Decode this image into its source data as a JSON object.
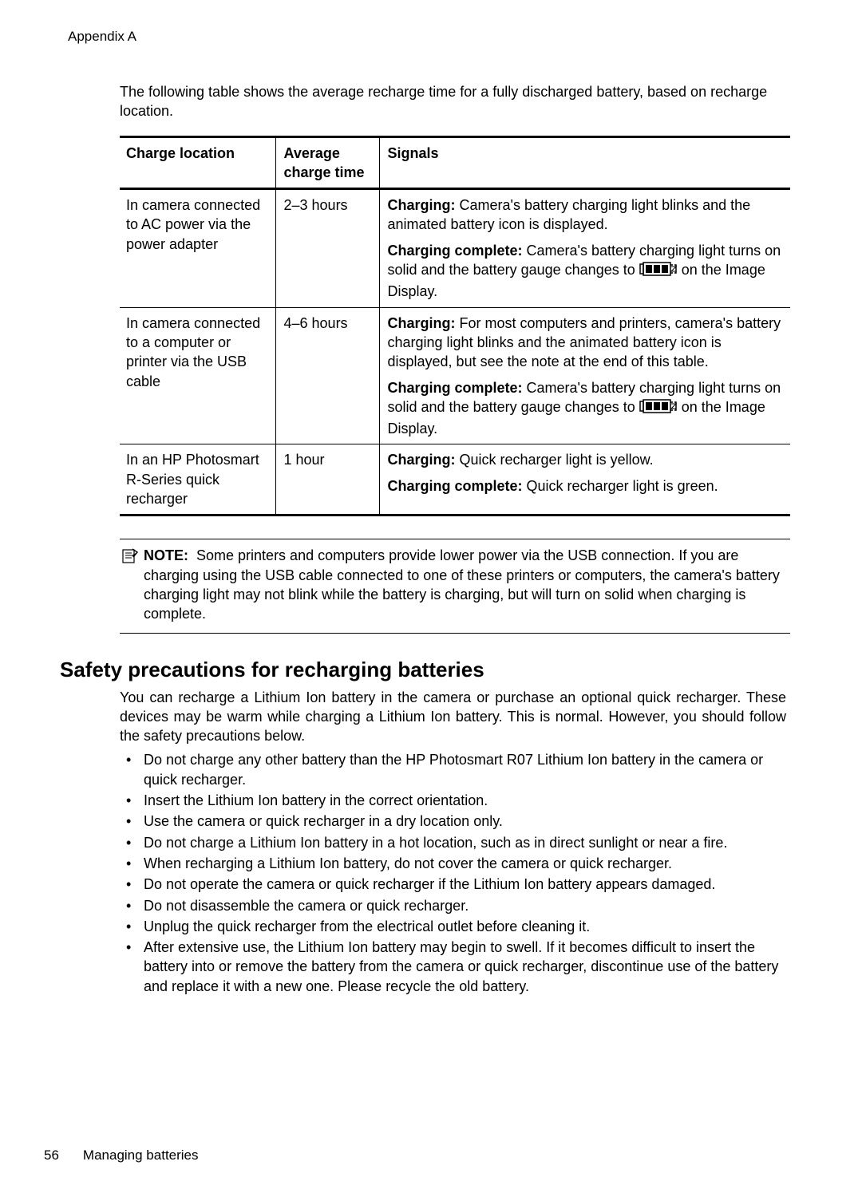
{
  "appendix": "Appendix A",
  "intro": "The following table shows the average recharge time for a fully discharged battery, based on recharge location.",
  "table": {
    "headers": {
      "location": "Charge location",
      "time": "Average charge time",
      "signals": "Signals"
    },
    "strong": {
      "charging": "Charging:",
      "complete": "Charging complete:"
    },
    "icon_suffix": "on the Image Display.",
    "rows": [
      {
        "location": "In camera connected to AC power via the power adapter",
        "time": "2–3 hours",
        "charging": "Camera's battery charging light blinks and the animated battery icon is displayed.",
        "complete_pre": "Camera's battery charging light turns on solid and the battery gauge changes to",
        "has_icon": true
      },
      {
        "location": "In camera connected to a computer or printer via the USB cable",
        "time": "4–6 hours",
        "charging": "For most computers and printers, camera's battery charging light blinks and the animated battery icon is displayed, but see the note at the end of this table.",
        "complete_pre": "Camera's battery charging light turns on solid and the battery gauge changes to",
        "has_icon": true
      },
      {
        "location": "In an HP Photosmart R-Series quick recharger",
        "time": "1 hour",
        "charging": "Quick recharger light is yellow.",
        "complete_pre": "Quick recharger light is green.",
        "has_icon": false
      }
    ]
  },
  "note": {
    "label": "NOTE:",
    "body": "Some printers and computers provide lower power via the USB connection. If you are charging using the USB cable connected to one of these printers or computers, the camera's battery charging light may not blink while the battery is charging, but will turn on solid when charging is complete."
  },
  "safety": {
    "heading": "Safety precautions for recharging batteries",
    "intro": "You can recharge a Lithium Ion battery in the camera or purchase an optional quick recharger. These devices may be warm while charging a Lithium Ion battery. This is normal. However, you should follow the safety precautions below.",
    "items": [
      "Do not charge any other battery than the HP Photosmart R07 Lithium Ion battery in the camera or quick recharger.",
      "Insert the Lithium Ion battery in the correct orientation.",
      "Use the camera or quick recharger in a dry location only.",
      "Do not charge a Lithium Ion battery in a hot location, such as in direct sunlight or near a fire.",
      "When recharging a Lithium Ion battery, do not cover the camera or quick recharger.",
      "Do not operate the camera or quick recharger if the Lithium Ion battery appears damaged.",
      "Do not disassemble the camera or quick recharger.",
      "Unplug the quick recharger from the electrical outlet before cleaning it.",
      "After extensive use, the Lithium Ion battery may begin to swell. If it becomes difficult to insert the battery into or remove the battery from the camera or quick recharger, discontinue use of the battery and replace it with a new one. Please recycle the old battery."
    ]
  },
  "footer": {
    "page": "56",
    "section": "Managing batteries"
  }
}
